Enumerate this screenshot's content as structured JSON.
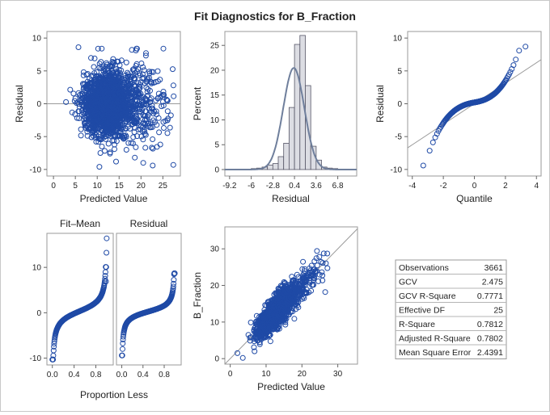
{
  "title": "Fit Diagnostics for B_Fraction",
  "colors": {
    "points": "#1f4aa6",
    "curve": "#6f7f9c",
    "bar_fill": "#dcdde3",
    "bar_stroke": "#555566",
    "ref": "#9a9a9a"
  },
  "chart_data": [
    {
      "type": "scatter",
      "panel": "residual-vs-predicted",
      "xlabel": "Predicted Value",
      "ylabel": "Residual",
      "xlim": [
        -1.5,
        29
      ],
      "ylim": [
        -11,
        11
      ],
      "xticks": [
        0,
        5,
        10,
        15,
        20,
        25
      ],
      "yticks": [
        -10,
        -5,
        0,
        5,
        10
      ],
      "reference_line": {
        "y": 0
      },
      "cloud": {
        "n": 2200,
        "x_mode": 11.5,
        "x_range": [
          2,
          27.5
        ],
        "y_sd": 2.0
      },
      "points": [
        [
          5.7,
          8.6
        ],
        [
          27.4,
          -9.3
        ],
        [
          9.4,
          6.9
        ],
        [
          17.9,
          8.2
        ],
        [
          14.3,
          -8.8
        ],
        [
          21.0,
          -6.7
        ],
        [
          10.5,
          -9.6
        ],
        [
          23.9,
          3.4
        ],
        [
          25.6,
          -2.6
        ],
        [
          12.4,
          5.4
        ],
        [
          18.6,
          -8.2
        ]
      ]
    },
    {
      "type": "histogram",
      "panel": "residual-histogram",
      "xlabel": "Residual",
      "ylabel": "Percent",
      "xlim": [
        -9.9,
        9.6
      ],
      "ylim": [
        -1.3,
        27.8
      ],
      "xticks": [
        -9.2,
        -6,
        -2.8,
        0.4,
        3.6,
        6.8
      ],
      "yticks": [
        0,
        5,
        10,
        15,
        20,
        25
      ],
      "bin_width": 0.8,
      "bin_start": -8.4,
      "values": [
        0.1,
        0.1,
        0.1,
        0.2,
        0.3,
        0.5,
        0.9,
        1.2,
        2.6,
        5.3,
        12.5,
        25.2,
        27.0,
        16.9,
        4.7,
        1.9,
        0.5,
        0.3,
        0.2,
        0.1,
        0.1
      ],
      "density_curve": {
        "mean": 0.3,
        "sd": 1.56
      }
    },
    {
      "type": "scatter",
      "panel": "qq-plot",
      "xlabel": "Quantile",
      "ylabel": "Residual",
      "xlim": [
        -4.3,
        4.3
      ],
      "ylim": [
        -11,
        11
      ],
      "xticks": [
        -4,
        -2,
        0,
        2,
        4
      ],
      "yticks": [
        -10,
        -5,
        0,
        5,
        10
      ],
      "reference_line": {
        "intercept": 0,
        "slope": 1.56
      },
      "n": 3661,
      "residual_range": [
        -9.4,
        8.7
      ]
    },
    {
      "type": "scatter",
      "panel": "residual-fit-spread",
      "subpanels": [
        "Fit–Mean",
        "Residual"
      ],
      "xlabel": "Proportion Less",
      "xlim": [
        -0.1,
        1.12
      ],
      "ylim": [
        -11.5,
        17.5
      ],
      "xticks": [
        0.0,
        0.4,
        0.8
      ],
      "yticks": [
        -10,
        0,
        10
      ],
      "fit_minus_mean_range": [
        -10.3,
        16.4
      ],
      "residual_range": [
        -9.4,
        8.7
      ]
    },
    {
      "type": "scatter",
      "panel": "observed-vs-predicted",
      "xlabel": "Predicted Value",
      "ylabel": "B_Fraction",
      "xlim": [
        -1.5,
        35.5
      ],
      "ylim": [
        -1.5,
        36
      ],
      "xticks": [
        0,
        10,
        20,
        30
      ],
      "yticks": [
        0,
        10,
        20,
        30
      ],
      "reference_line": {
        "intercept": 0,
        "slope": 1
      },
      "cloud": {
        "n": 1500,
        "x_mode": 12,
        "x_range": [
          3,
          27.5
        ],
        "y_sd": 1.8
      },
      "points": [
        [
          26.5,
          18.2
        ],
        [
          24.2,
          29.4
        ],
        [
          2.0,
          1.5
        ],
        [
          3.5,
          0.2
        ]
      ]
    },
    {
      "type": "table",
      "panel": "fit-statistics",
      "rows": [
        {
          "label": "Observations",
          "value": "3661"
        },
        {
          "label": "GCV",
          "value": "2.475"
        },
        {
          "label": "GCV R-Square",
          "value": "0.7771"
        },
        {
          "label": "Effective DF",
          "value": "25"
        },
        {
          "label": "R-Square",
          "value": "0.7812"
        },
        {
          "label": "Adjusted R-Square",
          "value": "0.7802"
        },
        {
          "label": "Mean Square Error",
          "value": "2.4391"
        }
      ]
    }
  ]
}
